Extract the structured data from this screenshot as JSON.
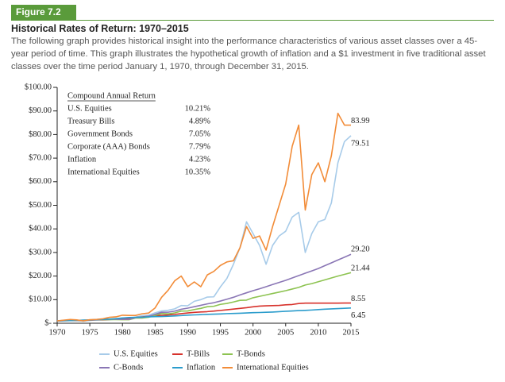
{
  "chart_data": {
    "type": "line",
    "figure_label": "Figure 7.2",
    "title": "Historical Rates of Return: 1970–2015",
    "subtitle": "The following graph provides historical insight into the performance characteristics of various asset classes over a 45-year period of time. This graph illustrates the hypothetical growth of inflation and a $1 investment in five traditional asset classes over the time period January 1, 1970, through December 31, 2015.",
    "x": [
      1970,
      1971,
      1972,
      1973,
      1974,
      1975,
      1976,
      1977,
      1978,
      1979,
      1980,
      1981,
      1982,
      1983,
      1984,
      1985,
      1986,
      1987,
      1988,
      1989,
      1990,
      1991,
      1992,
      1993,
      1994,
      1995,
      1996,
      1997,
      1998,
      1999,
      2000,
      2001,
      2002,
      2003,
      2004,
      2005,
      2006,
      2007,
      2008,
      2009,
      2010,
      2011,
      2012,
      2013,
      2014,
      2015
    ],
    "series": [
      {
        "name": "U.S. Equities",
        "color": "#a7cbe9",
        "values": [
          1,
          1.14,
          1.36,
          1.16,
          0.85,
          1.17,
          1.45,
          1.35,
          1.43,
          1.7,
          2.25,
          2.14,
          2.6,
          3.2,
          3.4,
          4.4,
          5.2,
          5.5,
          6.1,
          7.5,
          7.4,
          9.3,
          10.0,
          11.1,
          11.2,
          15.4,
          19,
          25,
          32,
          43,
          38,
          33,
          25,
          33,
          37,
          39,
          45,
          47,
          30,
          38,
          43,
          44,
          51,
          68,
          77,
          79.51
        ]
      },
      {
        "name": "T-Bills",
        "color": "#d7322c",
        "values": [
          1,
          1.06,
          1.11,
          1.16,
          1.25,
          1.32,
          1.39,
          1.46,
          1.57,
          1.73,
          1.92,
          2.2,
          2.44,
          2.66,
          2.92,
          3.14,
          3.33,
          3.51,
          3.74,
          4.05,
          4.36,
          4.61,
          4.77,
          4.92,
          5.14,
          5.43,
          5.71,
          6.01,
          6.3,
          6.6,
          6.98,
          7.27,
          7.39,
          7.47,
          7.57,
          7.8,
          7.95,
          8.35,
          8.52,
          8.53,
          8.53,
          8.54,
          8.54,
          8.54,
          8.55,
          8.55
        ]
      },
      {
        "name": "T-Bonds",
        "color": "#8dc351",
        "values": [
          1,
          1.18,
          1.24,
          1.23,
          1.25,
          1.35,
          1.55,
          1.55,
          1.53,
          1.52,
          1.48,
          1.5,
          2.2,
          2.21,
          2.55,
          3.34,
          4.15,
          3.97,
          4.37,
          5.15,
          5.2,
          5.8,
          6.3,
          7.0,
          7.2,
          8.0,
          8.4,
          9.0,
          9.7,
          9.8,
          10.8,
          11.4,
          12.0,
          12.6,
          13.2,
          13.8,
          14.5,
          15.2,
          16.2,
          16.8,
          17.6,
          18.4,
          19.2,
          20.0,
          20.7,
          21.44
        ]
      },
      {
        "name": "C-Bonds",
        "color": "#8a76b5",
        "values": [
          1,
          1.11,
          1.2,
          1.22,
          1.18,
          1.35,
          1.6,
          1.72,
          1.73,
          1.69,
          1.65,
          1.67,
          2.36,
          2.51,
          2.95,
          3.8,
          4.65,
          4.67,
          5.13,
          5.94,
          6.4,
          7.0,
          7.6,
          8.2,
          8.7,
          9.4,
          10.2,
          11.0,
          12.0,
          12.9,
          13.8,
          14.6,
          15.5,
          16.4,
          17.3,
          18.2,
          19.2,
          20.2,
          21.2,
          22.2,
          23.2,
          24.4,
          25.6,
          26.8,
          28.0,
          29.2
        ]
      },
      {
        "name": "Inflation",
        "color": "#2b9ccc",
        "values": [
          1,
          1.06,
          1.09,
          1.19,
          1.33,
          1.42,
          1.5,
          1.6,
          1.74,
          1.97,
          2.22,
          2.41,
          2.5,
          2.6,
          2.7,
          2.81,
          2.84,
          2.96,
          3.09,
          3.24,
          3.44,
          3.54,
          3.65,
          3.75,
          3.85,
          3.95,
          4.08,
          4.15,
          4.22,
          4.34,
          4.48,
          4.55,
          4.66,
          4.75,
          4.9,
          5.07,
          5.2,
          5.35,
          5.45,
          5.6,
          5.8,
          5.95,
          6.08,
          6.2,
          6.32,
          6.45
        ]
      },
      {
        "name": "International Equities",
        "color": "#f28c38",
        "values": [
          1,
          1.3,
          1.6,
          1.4,
          1.0,
          1.5,
          1.6,
          1.9,
          2.5,
          2.7,
          3.4,
          3.3,
          3.3,
          4.0,
          4.3,
          6.5,
          11,
          14,
          18,
          20,
          15.5,
          17.5,
          15.5,
          20.5,
          22,
          24.5,
          26,
          26.5,
          32,
          41,
          36,
          37,
          31,
          41,
          50,
          59,
          75,
          84,
          48,
          63,
          68,
          60,
          71,
          89,
          84,
          83.99
        ]
      }
    ],
    "xlim": [
      1970,
      2015
    ],
    "xticks": [
      1970,
      1975,
      1980,
      1985,
      1990,
      1995,
      2000,
      2005,
      2010,
      2015
    ],
    "ylim": [
      0,
      100
    ],
    "yticks": [
      {
        "value": 0,
        "label": "$-"
      },
      {
        "value": 10,
        "label": "$10.00"
      },
      {
        "value": 20,
        "label": "$20.00"
      },
      {
        "value": 30,
        "label": "$30.00"
      },
      {
        "value": 40,
        "label": "$40.00"
      },
      {
        "value": 50,
        "label": "$50.00"
      },
      {
        "value": 60,
        "label": "$60.00"
      },
      {
        "value": 70,
        "label": "$70.00"
      },
      {
        "value": 80,
        "label": "$80.00"
      },
      {
        "value": 90,
        "label": "$90.00"
      },
      {
        "value": 100,
        "label": "$100.00"
      }
    ],
    "grid": false,
    "legend": "bottom",
    "return_table": {
      "header": "Compound Annual Return",
      "rows": [
        [
          "U.S. Equities",
          "10.21%"
        ],
        [
          "Treasury Bills",
          "4.89%"
        ],
        [
          "Government Bonds",
          "7.05%"
        ],
        [
          "Corporate (AAA) Bonds",
          "7.79%"
        ],
        [
          "Inflation",
          "4.23%"
        ],
        [
          "International Equities",
          "10.35%"
        ]
      ]
    }
  }
}
